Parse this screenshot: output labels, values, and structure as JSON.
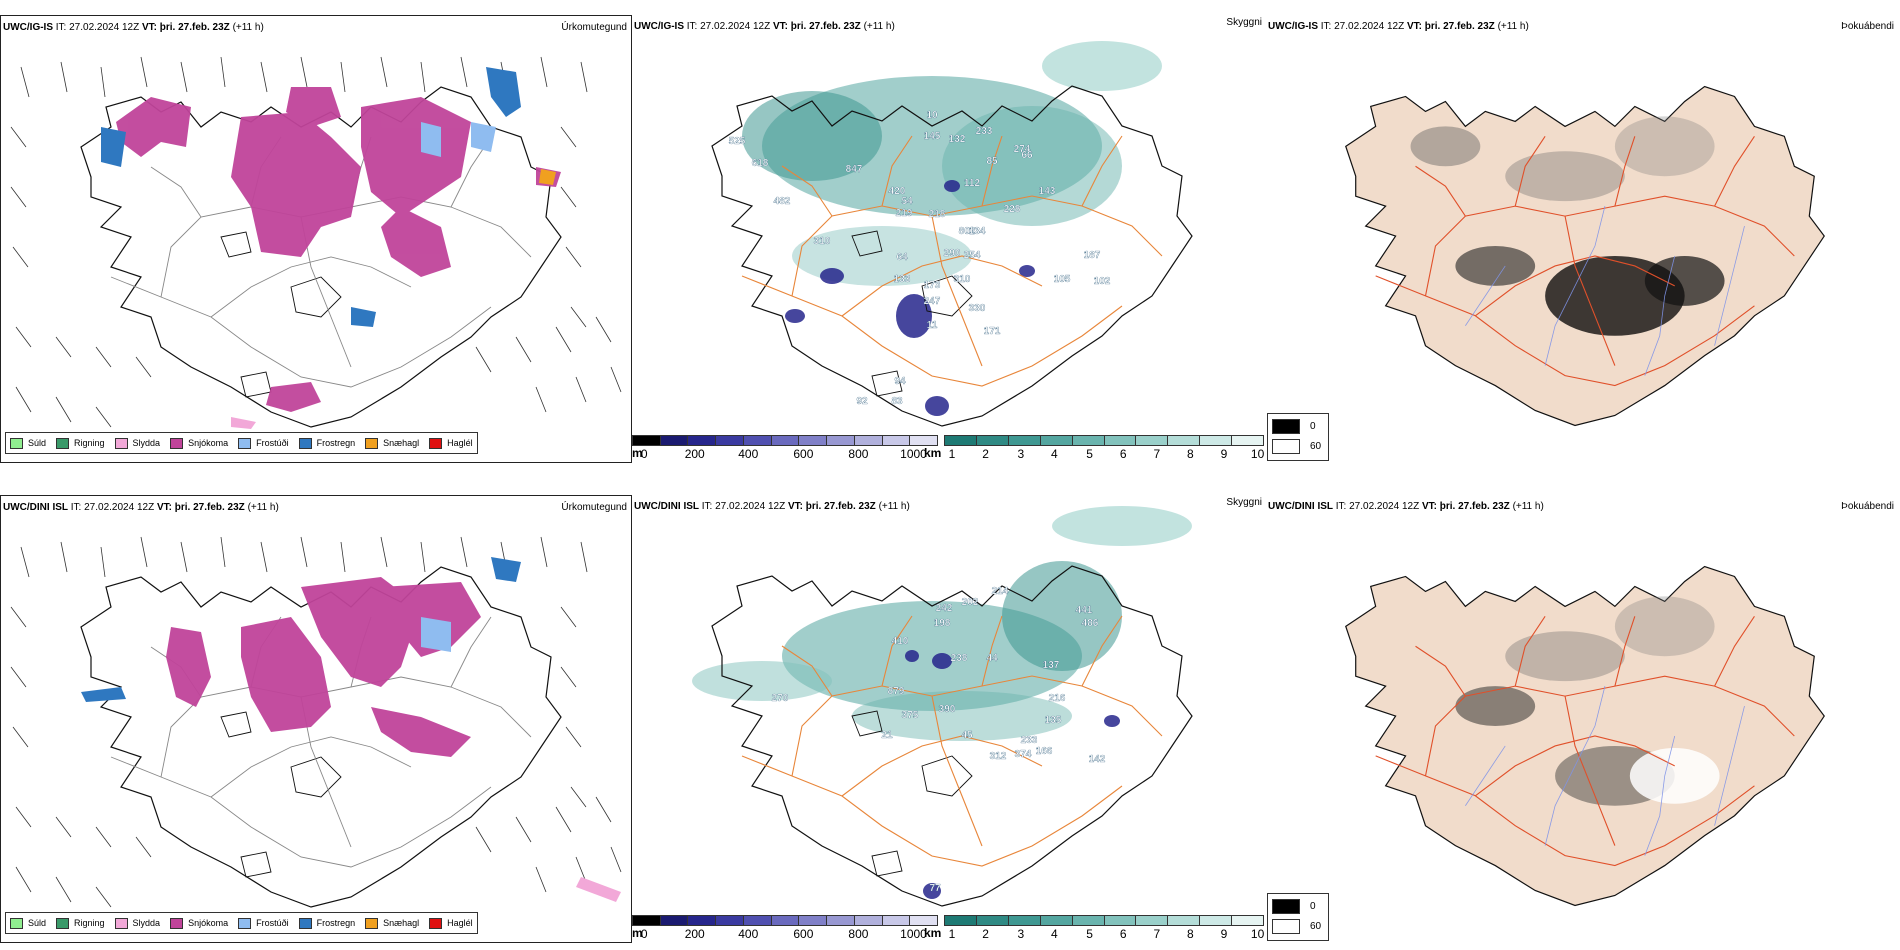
{
  "row1": {
    "model": "UWC/IG-IS",
    "it_label": "IT:",
    "it_value": "27.02.2024 12Z",
    "vt_label": "VT:",
    "vt_value": "þri. 27.feb. 23Z",
    "lead": "(+11 h)",
    "titles": [
      "Úrkomutegund",
      "Skyggni",
      "Þokuábendi"
    ],
    "terrain_labels": [
      "525",
      "618",
      "482",
      "847",
      "310",
      "420",
      "54",
      "219",
      "218",
      "802",
      "290",
      "64",
      "133",
      "173",
      "11",
      "254",
      "134",
      "228",
      "274",
      "143",
      "102",
      "187",
      "105",
      "92",
      "83",
      "94",
      "85",
      "10",
      "132",
      "145",
      "233",
      "247",
      "310",
      "330",
      "66",
      "171",
      "112"
    ]
  },
  "row2": {
    "model": "UWC/DINI ISL",
    "it_label": "IT:",
    "it_value": "27.02.2024 12Z",
    "vt_label": "VT:",
    "vt_value": "þri. 27.feb. 23Z",
    "lead": "(+11 h)",
    "titles": [
      "Úrkomutegund",
      "Skyggni",
      "Þokuábendi"
    ],
    "terrain_labels": [
      "242",
      "202",
      "214",
      "410",
      "198",
      "441",
      "486",
      "137",
      "879",
      "375",
      "390",
      "216",
      "135",
      "233",
      "374",
      "312",
      "166",
      "142",
      "270",
      "21",
      "77",
      "45",
      "44",
      "238"
    ]
  },
  "precip_legend": [
    {
      "label": "Súld",
      "color": "#90ee90"
    },
    {
      "label": "Rigning",
      "color": "#3a9a6a"
    },
    {
      "label": "Slydda",
      "color": "#f2a8d8"
    },
    {
      "label": "Snjókoma",
      "color": "#c0449a"
    },
    {
      "label": "Frostúði",
      "color": "#8fbcf0"
    },
    {
      "label": "Frostregn",
      "color": "#2f78c0"
    },
    {
      "label": "Snæhagl",
      "color": "#f0a020"
    },
    {
      "label": "Haglél",
      "color": "#e01010"
    }
  ],
  "altitude_bar": {
    "unit": "m",
    "ticks": [
      "0",
      "200",
      "400",
      "600",
      "800",
      "1000"
    ],
    "colors": [
      "#000000",
      "#1a1a70",
      "#26268c",
      "#3a3aa0",
      "#5050b0",
      "#6a6abe",
      "#8080c8",
      "#9898d2",
      "#b0b0dc",
      "#c8c8e8",
      "#e0e0f2"
    ]
  },
  "visibility_bar": {
    "unit": "km",
    "ticks": [
      "1",
      "2",
      "3",
      "4",
      "5",
      "6",
      "7",
      "8",
      "9",
      "10"
    ],
    "colors": [
      "#1e7a74",
      "#2f8a84",
      "#3f9892",
      "#54a6a0",
      "#6ab4ae",
      "#82c2bc",
      "#9ad0ca",
      "#b4ddd8",
      "#cde9e6",
      "#e6f4f2"
    ]
  },
  "fog_legend": [
    {
      "label": "0",
      "color": "#000000"
    },
    {
      "label": "60",
      "color": "#ffffff"
    }
  ]
}
